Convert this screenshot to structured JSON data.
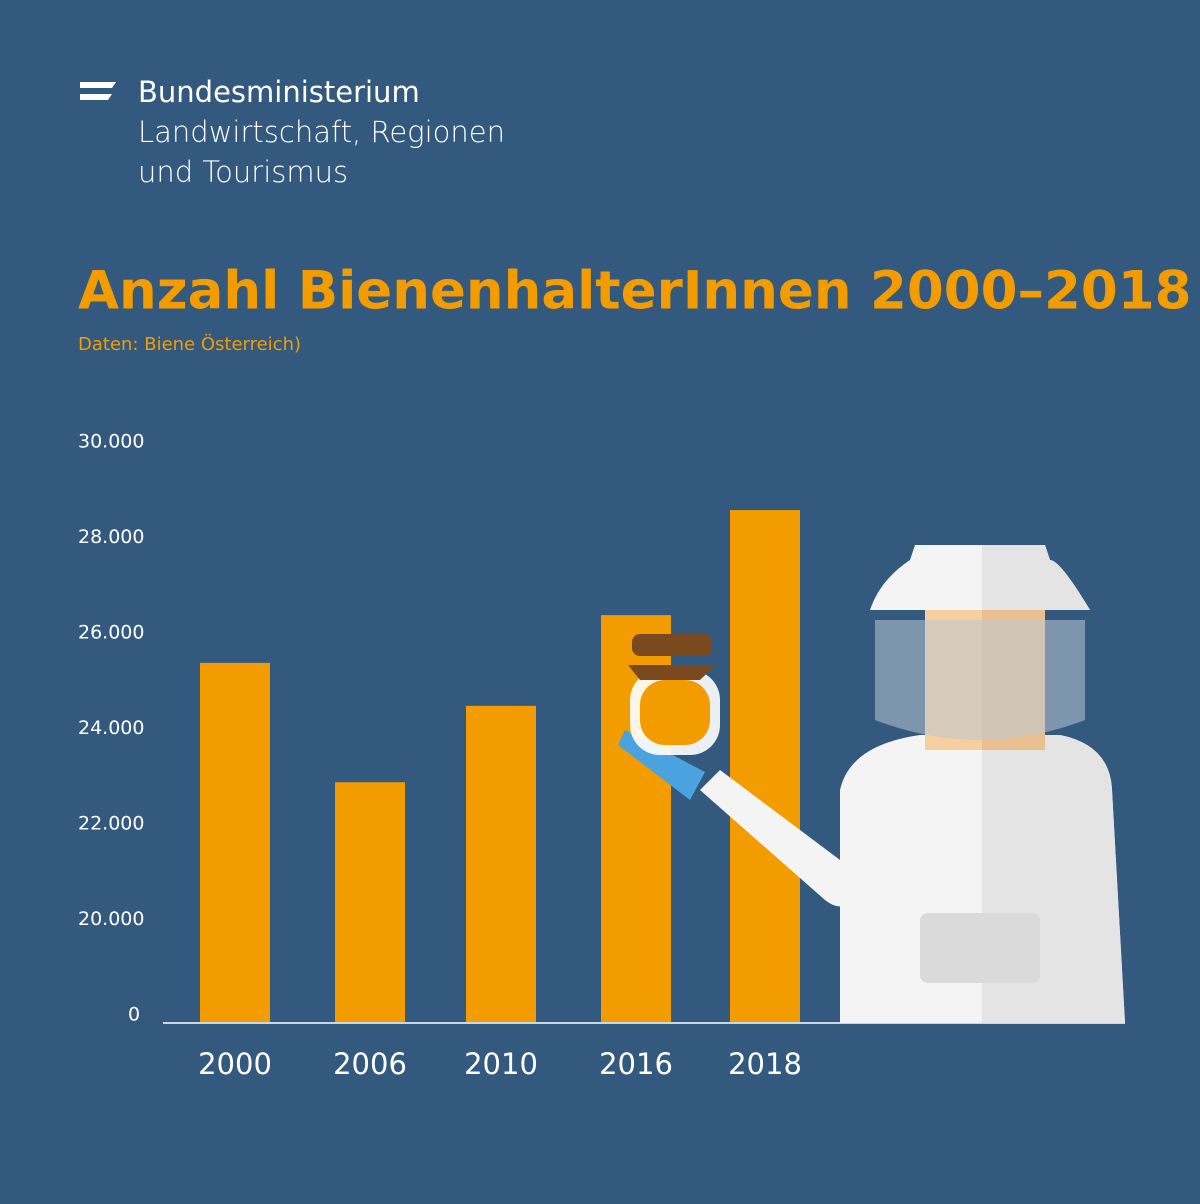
{
  "header": {
    "lines": [
      "Bundesministerium",
      "Landwirtschaft, Regionen",
      "und Tourismus"
    ]
  },
  "chart_data": {
    "type": "bar",
    "title": "Anzahl BienenhalterInnen 2000–2018",
    "subtitle": "Daten: Biene Österreich)",
    "categories": [
      "2000",
      "2006",
      "2010",
      "2016",
      "2018"
    ],
    "values": [
      25500,
      23000,
      24600,
      26500,
      28700
    ],
    "color": "#f39c00",
    "ylim": [
      0,
      30000
    ],
    "yticks": [
      0,
      {
        "value": 20000,
        "label": "20.000"
      },
      {
        "value": 22000,
        "label": "22.000"
      },
      {
        "value": 24000,
        "label": "24.000"
      },
      {
        "value": 26000,
        "label": "26.000"
      },
      {
        "value": 28000,
        "label": "28.000"
      },
      {
        "value": 30000,
        "label": "30.000"
      }
    ]
  }
}
